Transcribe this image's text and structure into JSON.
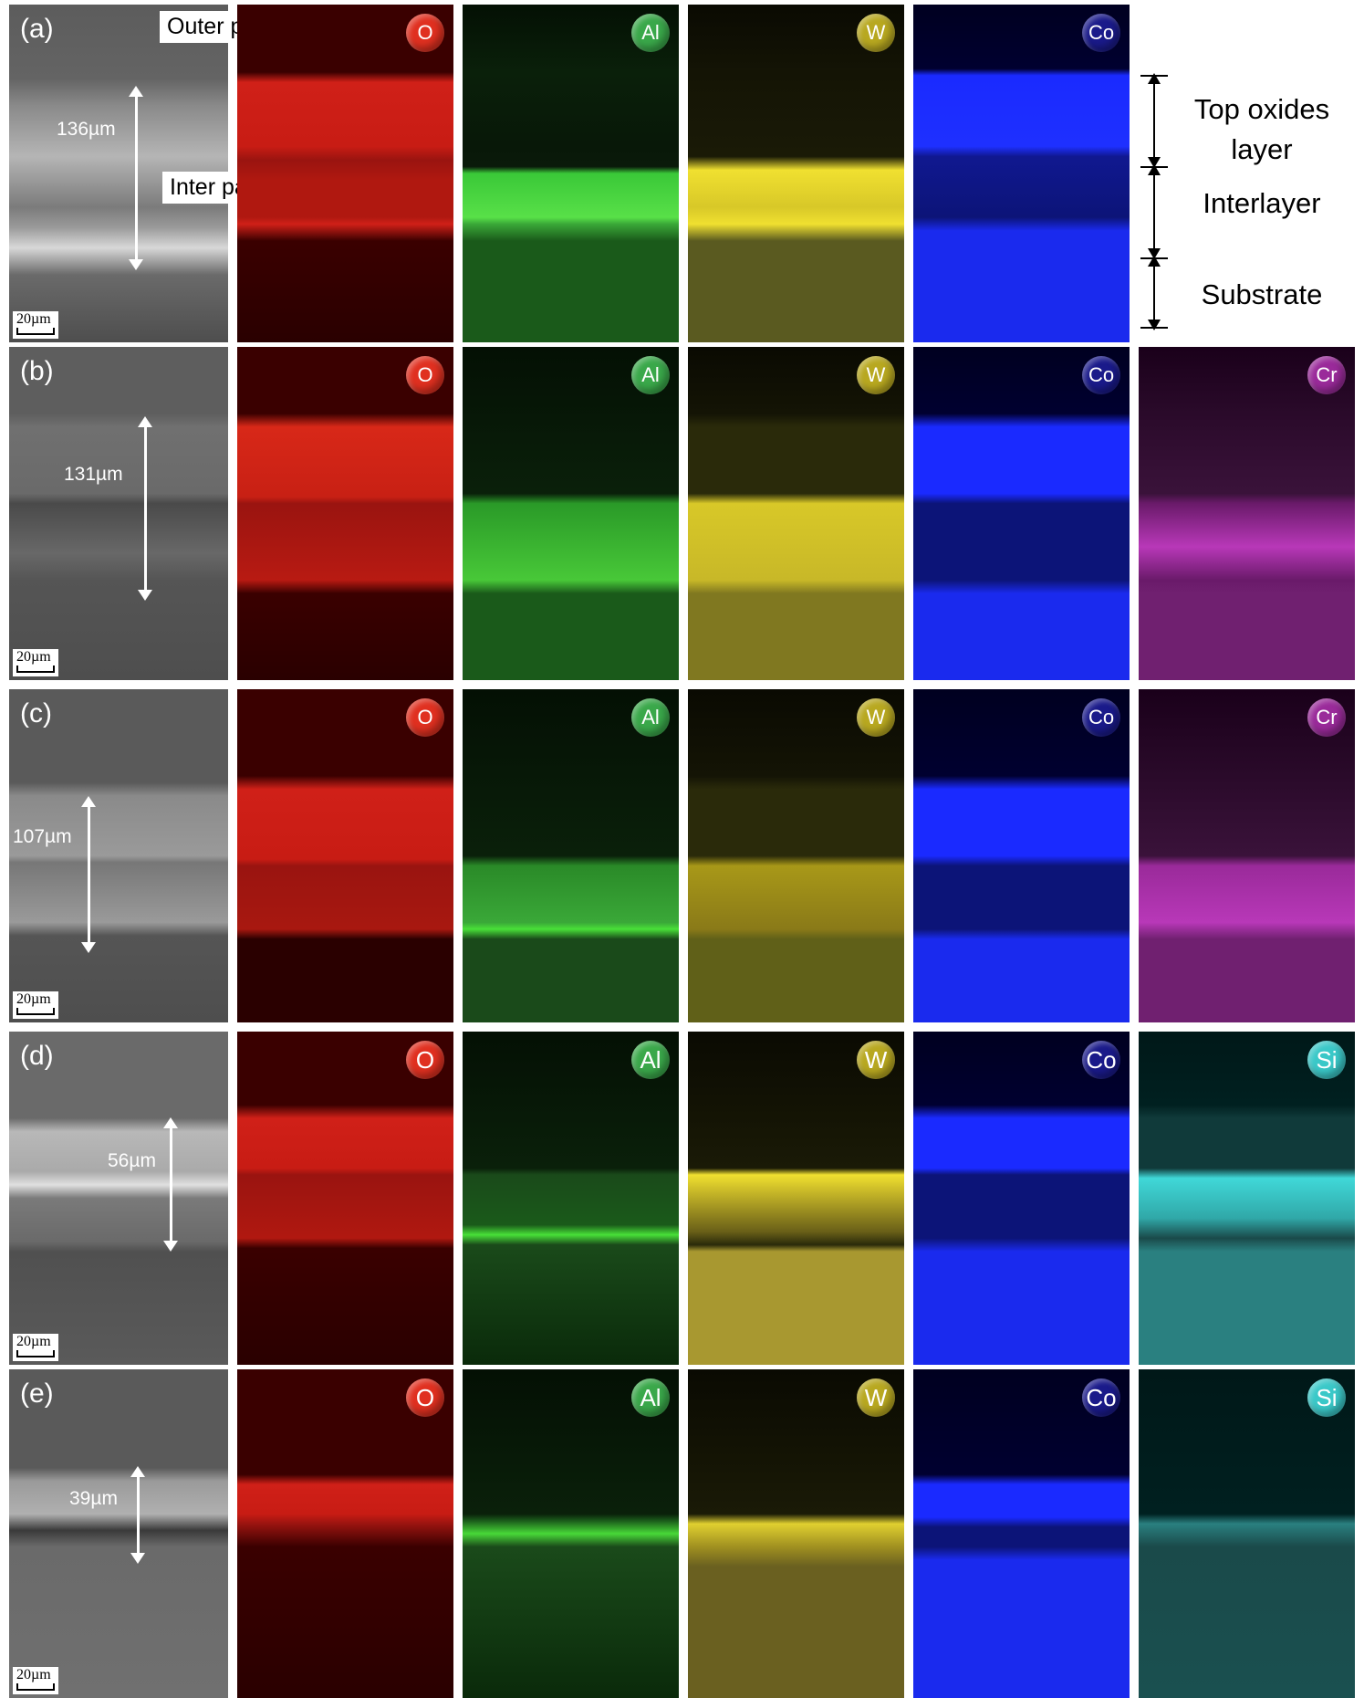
{
  "figure": {
    "rows": [
      {
        "label": "(a)",
        "thickness": "136µm",
        "scale": "20µm",
        "maps": [
          {
            "el": "O"
          },
          {
            "el": "Al"
          },
          {
            "el": "W"
          },
          {
            "el": "Co"
          }
        ]
      },
      {
        "label": "(b)",
        "thickness": "131µm",
        "scale": "20µm",
        "maps": [
          {
            "el": "O"
          },
          {
            "el": "Al"
          },
          {
            "el": "W"
          },
          {
            "el": "Co"
          },
          {
            "el": "Cr"
          }
        ]
      },
      {
        "label": "(c)",
        "thickness": "107µm",
        "scale": "20µm",
        "maps": [
          {
            "el": "O"
          },
          {
            "el": "Al"
          },
          {
            "el": "W"
          },
          {
            "el": "Co"
          },
          {
            "el": "Cr"
          }
        ]
      },
      {
        "label": "(d)",
        "thickness": "56µm",
        "scale": "20µm",
        "maps": [
          {
            "el": "O"
          },
          {
            "el": "Al"
          },
          {
            "el": "W"
          },
          {
            "el": "Co"
          },
          {
            "el": "Si"
          }
        ]
      },
      {
        "label": "(e)",
        "thickness": "39µm",
        "scale": "20µm",
        "maps": [
          {
            "el": "O"
          },
          {
            "el": "Al"
          },
          {
            "el": "W"
          },
          {
            "el": "Co"
          },
          {
            "el": "Si"
          }
        ]
      }
    ],
    "callouts": {
      "outer": "Outer part",
      "inter": "Inter part"
    },
    "legend": {
      "top_oxides": "Top oxides layer",
      "interlayer": "Interlayer",
      "substrate": "Substrate"
    },
    "colors": {
      "O": "#e03020",
      "Al": "#3aa84a",
      "W": "#b8a820",
      "Co": "#1a1a8a",
      "Cr": "#9a2a9a",
      "Si": "#3ac8c8"
    }
  }
}
